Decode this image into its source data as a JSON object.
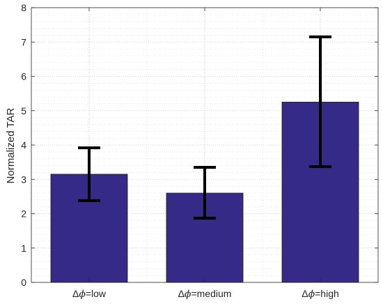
{
  "chart_data": {
    "type": "bar",
    "categories": [
      {
        "prefix": "Δ",
        "symbol": "ϕ",
        "suffix": "=low"
      },
      {
        "prefix": "Δ",
        "symbol": "ϕ",
        "suffix": "=medium"
      },
      {
        "prefix": "Δ",
        "symbol": "ϕ",
        "suffix": "=high"
      }
    ],
    "values": [
      3.15,
      2.6,
      5.25
    ],
    "error_low": [
      2.38,
      1.87,
      3.37
    ],
    "error_high": [
      3.92,
      3.35,
      7.15
    ],
    "title": "",
    "xlabel": "",
    "ylabel": "Normalized TAR",
    "ylim": [
      0,
      8
    ],
    "yticks": [
      0,
      1,
      2,
      3,
      4,
      5,
      6,
      7,
      8
    ],
    "grid": "on (dotted, major + minor)",
    "legend": "none",
    "colors": {
      "bar_fill": "#352a87",
      "bar_edge": "#1a1a1a",
      "error_bar": "#000000",
      "axis": "#262626",
      "grid": "#c8c8c8"
    }
  }
}
